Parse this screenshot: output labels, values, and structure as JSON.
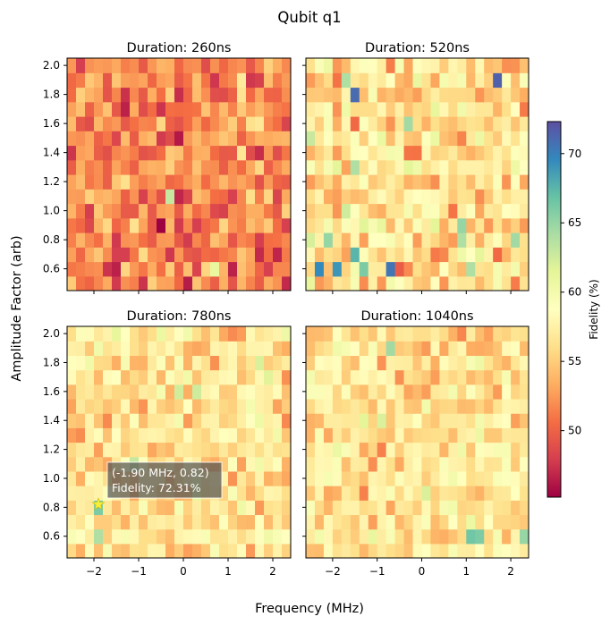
{
  "chart_data": {
    "type": "heatmap",
    "title": "Qubit q1",
    "xlabel": "Frequency (MHz)",
    "ylabel": "Amplitude Factor (arb)",
    "xlim": [
      -2.6,
      2.4
    ],
    "ylim": [
      0.45,
      2.05
    ],
    "x_ticks": [
      -2,
      -1,
      0,
      1,
      2
    ],
    "x_tick_labels": [
      "−2",
      "−1",
      "0",
      "1",
      "2"
    ],
    "y_ticks": [
      0.6,
      0.8,
      1.0,
      1.2,
      1.4,
      1.6,
      1.8,
      2.0
    ],
    "y_tick_labels": [
      "0.6",
      "0.8",
      "1.0",
      "1.2",
      "1.4",
      "1.6",
      "1.8",
      "2.0"
    ],
    "grid": {
      "nx": 25,
      "ny": 16,
      "cell_width_mhz": 0.2,
      "cell_height_arb": 0.1
    },
    "colormap": "Spectral",
    "colorbar": {
      "label": "Fidelity (%)",
      "range": [
        45.2,
        72.31
      ],
      "ticks": [
        50,
        55,
        60,
        65,
        70
      ],
      "tick_labels": [
        "50",
        "55",
        "60",
        "65",
        "70"
      ]
    },
    "panels": [
      {
        "title": "Duration: 260ns",
        "mean": 51.5,
        "spread": 2.6,
        "hotspots": [
          {
            "x": -0.5,
            "y": 0.9,
            "value": 45.2
          },
          {
            "x": -2.45,
            "y": 1.45,
            "value": 47.5
          },
          {
            "x": 0.1,
            "y": 0.8,
            "value": 47.8
          },
          {
            "x": 1.1,
            "y": 1.15,
            "value": 48.0
          },
          {
            "x": 2.1,
            "y": 1.15,
            "value": 48.3
          },
          {
            "x": -0.4,
            "y": 1.15,
            "value": 63.0
          },
          {
            "x": 0.7,
            "y": 0.55,
            "value": 61.0
          }
        ]
      },
      {
        "title": "Duration: 520ns",
        "mean": 56.0,
        "spread": 3.2,
        "hotspots": [
          {
            "x": -1.5,
            "y": 1.75,
            "value": 71.0
          },
          {
            "x": -1.7,
            "y": 1.95,
            "value": 64.0
          },
          {
            "x": 1.7,
            "y": 1.95,
            "value": 71.5
          },
          {
            "x": -0.3,
            "y": 1.55,
            "value": 64.5
          },
          {
            "x": -1.5,
            "y": 1.25,
            "value": 64.0
          },
          {
            "x": 0.9,
            "y": 0.95,
            "value": 65.0
          },
          {
            "x": 0.9,
            "y": 0.85,
            "value": 64.0
          },
          {
            "x": 2.1,
            "y": 0.85,
            "value": 64.5
          },
          {
            "x": -2.1,
            "y": 0.75,
            "value": 65.0
          },
          {
            "x": -2.3,
            "y": 0.55,
            "value": 69.5
          },
          {
            "x": -1.9,
            "y": 0.55,
            "value": 69.0
          },
          {
            "x": -1.5,
            "y": 0.65,
            "value": 67.5
          },
          {
            "x": -1.3,
            "y": 0.55,
            "value": 66.0
          },
          {
            "x": -0.7,
            "y": 0.55,
            "value": 70.5
          },
          {
            "x": 1.1,
            "y": 0.55,
            "value": 64.0
          }
        ]
      },
      {
        "title": "Duration: 780ns",
        "mean": 56.5,
        "spread": 2.6,
        "hotspots": [
          {
            "x": -1.9,
            "y": 0.85,
            "value": 69.0
          },
          {
            "x": -1.9,
            "y": 0.75,
            "value": 66.0
          },
          {
            "x": -1.9,
            "y": 0.55,
            "value": 64.0
          },
          {
            "x": -1.1,
            "y": 1.15,
            "value": 63.0
          },
          {
            "x": 0.3,
            "y": 1.55,
            "value": 62.5
          },
          {
            "x": 1.7,
            "y": 1.75,
            "value": 62.0
          }
        ],
        "best": {
          "x": -1.9,
          "y": 0.82,
          "fidelity": 72.31,
          "label": "(-1.90 MHz, 0.82)",
          "fidelity_label": "Fidelity: 72.31%"
        }
      },
      {
        "title": "Duration: 1040ns",
        "mean": 56.5,
        "spread": 2.6,
        "hotspots": [
          {
            "x": -0.7,
            "y": 1.95,
            "value": 64.5
          },
          {
            "x": 1.1,
            "y": 0.55,
            "value": 66.5
          },
          {
            "x": 1.3,
            "y": 0.55,
            "value": 66.0
          },
          {
            "x": 2.3,
            "y": 0.55,
            "value": 65.0
          },
          {
            "x": 0.1,
            "y": 0.95,
            "value": 62.0
          },
          {
            "x": -1.3,
            "y": 1.35,
            "value": 61.5
          }
        ]
      }
    ]
  }
}
